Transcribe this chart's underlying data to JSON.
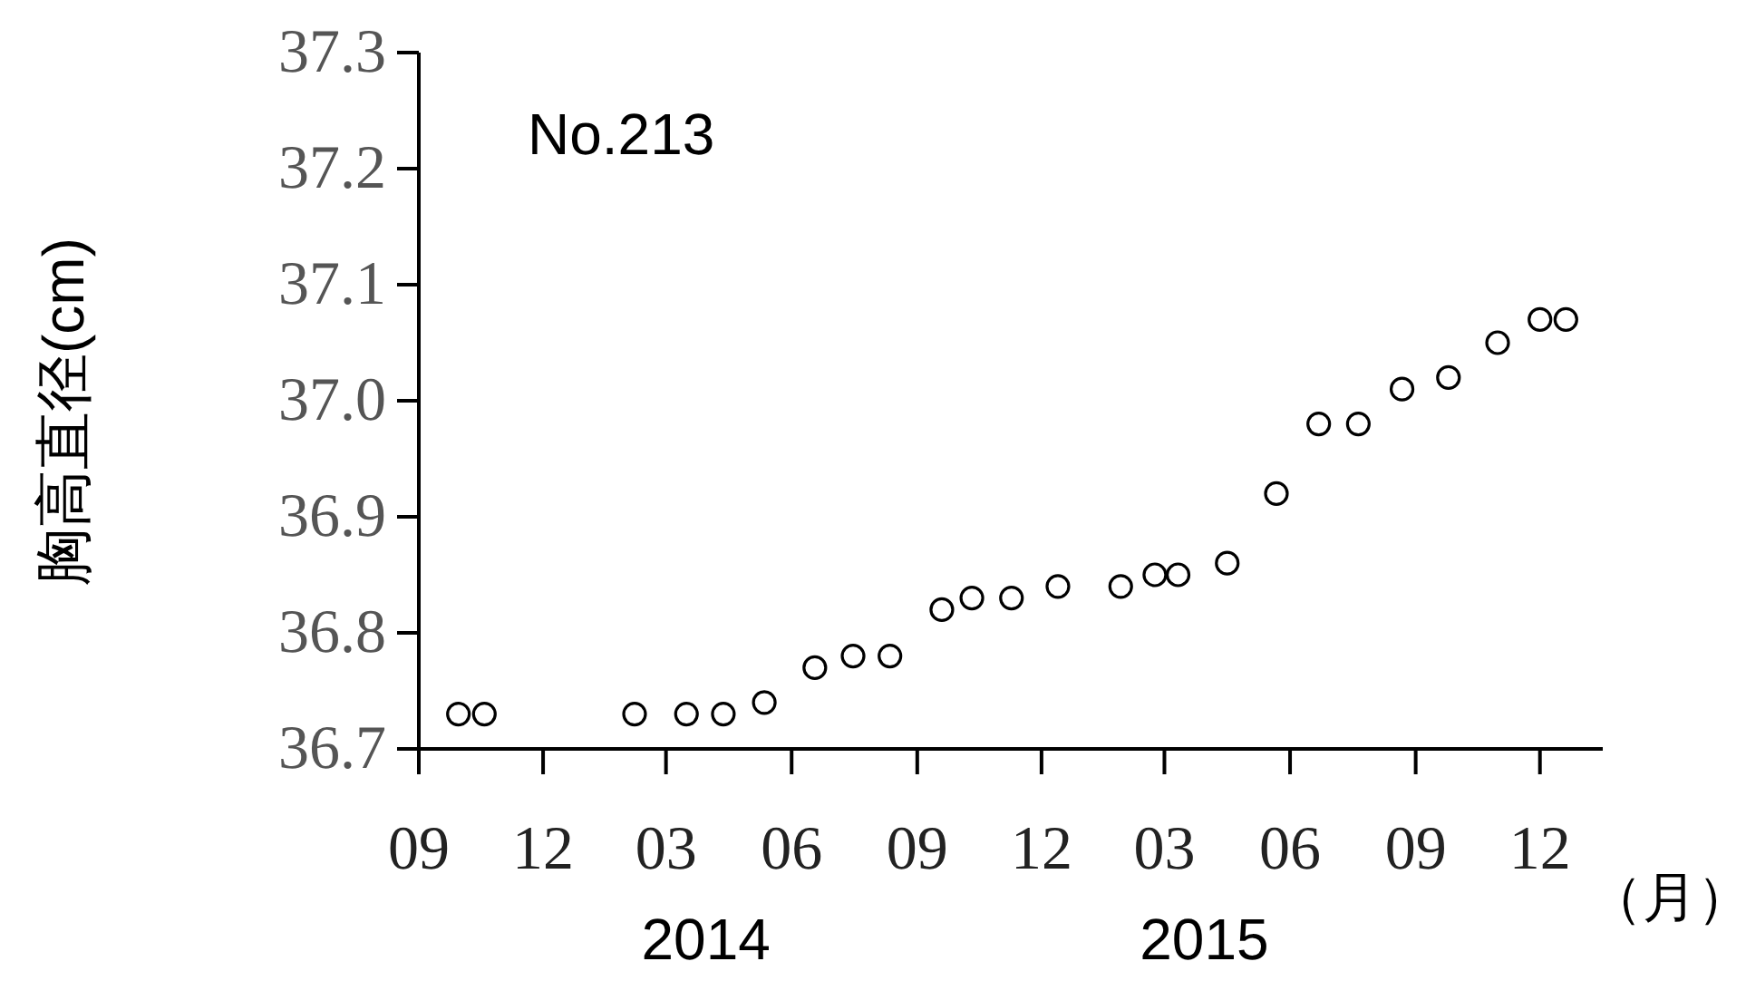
{
  "chart_data": {
    "type": "scatter",
    "ylabel": "胸高直径(cm)",
    "xlabel": "（月）",
    "annotations": [
      "No.213",
      "2014",
      "2015"
    ],
    "x": [
      "2013-09-30",
      "2013-10-19",
      "2014-02-06",
      "2014-03-16",
      "2014-04-12",
      "2014-05-12",
      "2014-06-18",
      "2014-07-16",
      "2014-08-12",
      "2014-09-19",
      "2014-10-11",
      "2014-11-09",
      "2014-12-13",
      "2015-01-28",
      "2015-02-22",
      "2015-03-11",
      "2015-04-16",
      "2015-05-22",
      "2015-06-22",
      "2015-07-21",
      "2015-08-22",
      "2015-09-25",
      "2015-10-31",
      "2015-12-01",
      "2015-12-20"
    ],
    "values": [
      36.73,
      36.73,
      36.73,
      36.73,
      36.73,
      36.74,
      36.77,
      36.78,
      36.78,
      36.82,
      36.83,
      36.83,
      36.84,
      36.84,
      36.85,
      36.85,
      36.86,
      36.92,
      36.98,
      36.98,
      37.01,
      37.02,
      37.05,
      37.07,
      37.07
    ],
    "color": "#000000",
    "marker": "circle",
    "xlim": [
      "2013-09",
      "2016-01-16"
    ],
    "xticks": [
      {
        "value": "2013-09",
        "label": "09"
      },
      {
        "value": "2013-12",
        "label": "12"
      },
      {
        "value": "2014-03",
        "label": "03"
      },
      {
        "value": "2014-06",
        "label": "06"
      },
      {
        "value": "2014-09",
        "label": "09"
      },
      {
        "value": "2014-12",
        "label": "12"
      },
      {
        "value": "2015-03",
        "label": "03"
      },
      {
        "value": "2015-06",
        "label": "06"
      },
      {
        "value": "2015-09",
        "label": "09"
      },
      {
        "value": "2015-12",
        "label": "12"
      }
    ],
    "ylim": [
      36.7,
      37.3
    ],
    "yticks": [
      {
        "value": 36.7,
        "label": "36.7"
      },
      {
        "value": 36.8,
        "label": "36.8"
      },
      {
        "value": 36.9,
        "label": "36.9"
      },
      {
        "value": 37.0,
        "label": "37.0"
      },
      {
        "value": 37.1,
        "label": "37.1"
      },
      {
        "value": 37.2,
        "label": "37.2"
      },
      {
        "value": 37.3,
        "label": "37.3"
      }
    ]
  }
}
